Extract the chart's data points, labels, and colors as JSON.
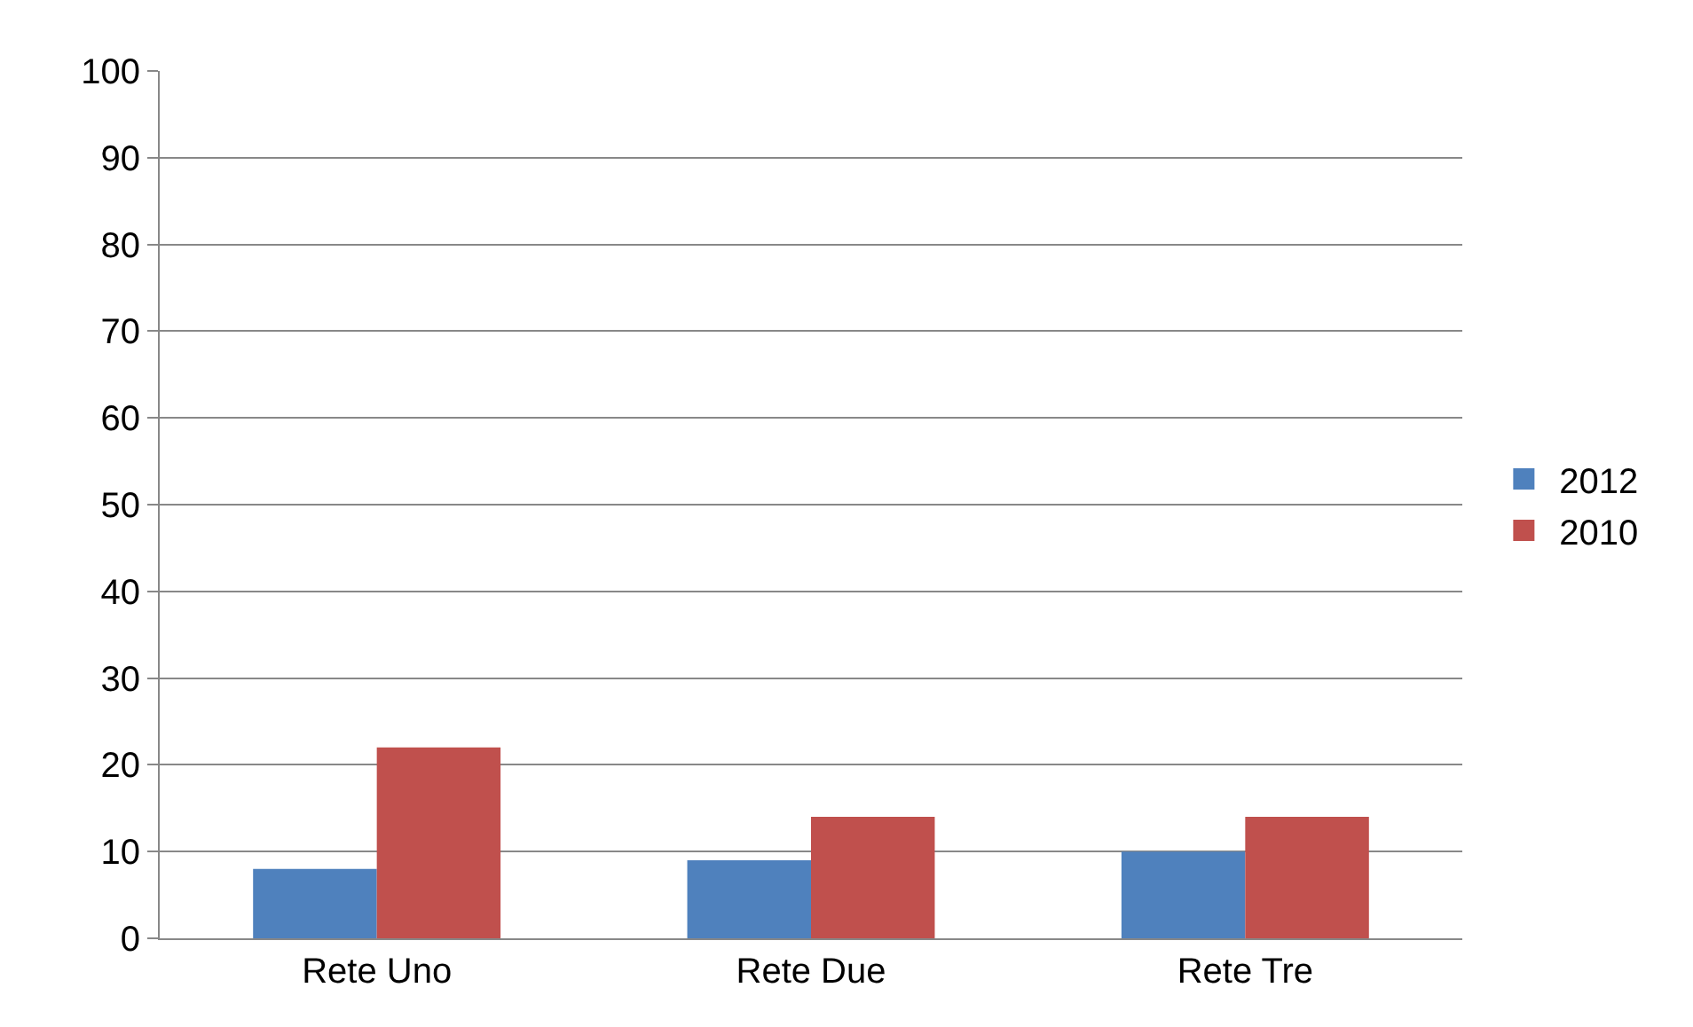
{
  "chart_data": {
    "type": "bar",
    "categories": [
      "Rete Uno",
      "Rete Due",
      "Rete Tre"
    ],
    "series": [
      {
        "name": "2012",
        "color": "#4f81bd",
        "values": [
          8,
          9,
          10
        ]
      },
      {
        "name": "2010",
        "color": "#c0504d",
        "values": [
          22,
          14,
          14
        ]
      }
    ],
    "ylim": [
      0,
      100
    ],
    "yticks": [
      0,
      10,
      20,
      30,
      40,
      50,
      60,
      70,
      80,
      90,
      100
    ],
    "grid": "y",
    "legend": "right"
  }
}
